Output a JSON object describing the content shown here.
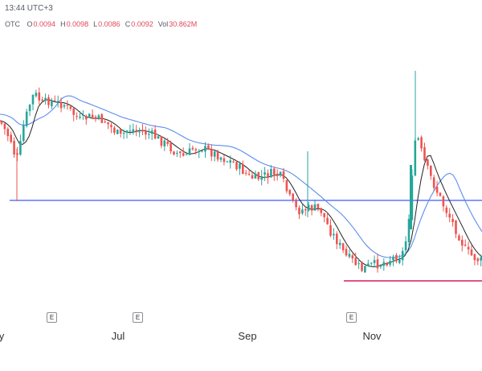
{
  "header": {
    "time": "13:44 UTC+3",
    "exchange": "OTC",
    "ohlc": {
      "o_label": "O",
      "o": "0.0094",
      "h_label": "H",
      "h": "0.0098",
      "l_label": "L",
      "l": "0.0086",
      "c_label": "C",
      "c": "0.0092",
      "vol_label": "Vol",
      "vol": "30.862M"
    }
  },
  "x_axis": {
    "labels": [
      "y",
      "Jul",
      "Sep",
      "Nov"
    ]
  },
  "earnings_badge": "E",
  "colors": {
    "up": "#26a69a",
    "down": "#ef5350",
    "ma_fast": "#222222",
    "ma_slow": "#5b8def",
    "support": "#3d5afe",
    "low_line": "#d81b60"
  }
}
